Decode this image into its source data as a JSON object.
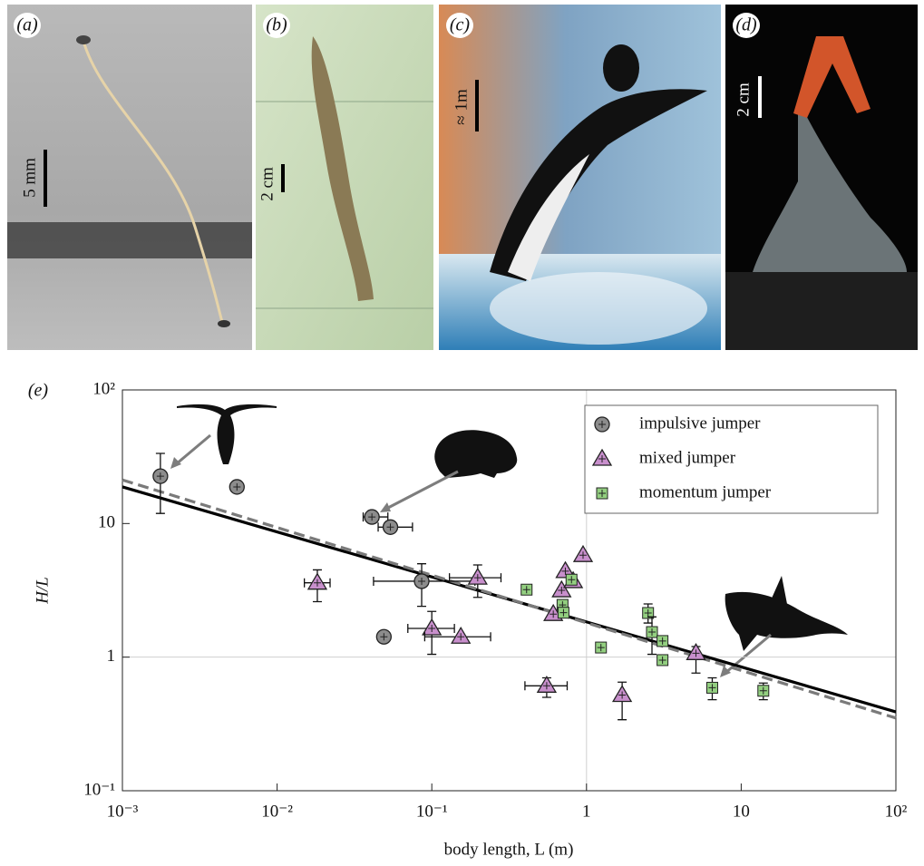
{
  "panels": [
    {
      "label": "(a)",
      "scale": "5 mm"
    },
    {
      "label": "(b)",
      "scale": "2 cm"
    },
    {
      "label": "(c)",
      "scale": "≈ 1m"
    },
    {
      "label": "(d)",
      "scale": "2 cm"
    }
  ],
  "chart_data": {
    "type": "scatter",
    "panel_label": "(e)",
    "xlabel": "body length, L (m)",
    "ylabel": "H/L",
    "xscale": "log",
    "yscale": "log",
    "xlim": [
      0.001,
      100
    ],
    "ylim": [
      0.1,
      100
    ],
    "xticks": [
      {
        "value": 0.001,
        "label": "10⁻³"
      },
      {
        "value": 0.01,
        "label": "10⁻²"
      },
      {
        "value": 0.1,
        "label": "10⁻¹"
      },
      1,
      10,
      {
        "value": 100,
        "label": "10²"
      }
    ],
    "yticks": [
      {
        "value": 0.1,
        "label": "10⁻¹"
      },
      1,
      10,
      {
        "value": 100,
        "label": "10²"
      }
    ],
    "x_reflines": [
      1
    ],
    "y_reflines": [
      1
    ],
    "legend": "upper right",
    "series": [
      {
        "name": "impulsive jumper",
        "color": "#8c8c8c",
        "marker": "circle",
        "x": [
          0.00176,
          0.0055,
          0.041,
          0.054,
          0.086,
          0.049
        ],
        "y": [
          22.6,
          18.8,
          11.2,
          9.4,
          3.7,
          1.42
        ],
        "x_err": [
          null,
          null,
          [
            0.036,
            0.052
          ],
          [
            0.045,
            0.075
          ],
          [
            0.042,
            0.19
          ],
          null
        ],
        "y_err": [
          [
            11.9,
            33.5
          ],
          null,
          null,
          null,
          [
            2.4,
            5.0
          ],
          null
        ]
      },
      {
        "name": "mixed jumper",
        "color": "#c88fcc",
        "marker": "triangle",
        "x": [
          0.0182,
          0.1,
          0.154,
          0.198,
          0.553,
          0.61,
          0.69,
          0.73,
          0.82,
          0.95,
          1.7,
          5.1
        ],
        "y": [
          3.6,
          1.64,
          1.42,
          3.93,
          0.61,
          2.1,
          3.16,
          4.4,
          3.7,
          5.8,
          0.52,
          1.07
        ],
        "x_err": [
          [
            0.015,
            0.022
          ],
          [
            0.07,
            0.14
          ],
          [
            0.09,
            0.24
          ],
          [
            0.13,
            0.28
          ],
          [
            0.4,
            0.75
          ],
          null,
          null,
          null,
          null,
          null,
          null,
          null
        ],
        "y_err": [
          [
            2.6,
            4.5
          ],
          [
            1.05,
            2.2
          ],
          null,
          [
            2.8,
            4.9
          ],
          [
            0.5,
            0.7
          ],
          null,
          null,
          null,
          null,
          null,
          [
            0.34,
            0.65
          ],
          [
            0.76,
            1.2
          ]
        ]
      },
      {
        "name": "momentum jumper",
        "color": "#93cf80",
        "marker": "square",
        "x": [
          0.41,
          0.7,
          0.71,
          0.8,
          1.24,
          2.5,
          2.65,
          3.1,
          3.1,
          6.5,
          13.9
        ],
        "y": [
          3.2,
          2.46,
          2.15,
          3.8,
          1.18,
          2.14,
          1.54,
          1.32,
          0.95,
          0.59,
          0.56
        ],
        "x_err": [
          null,
          null,
          null,
          null,
          null,
          null,
          null,
          null,
          null,
          null,
          null
        ],
        "y_err": [
          null,
          null,
          null,
          null,
          null,
          [
            1.8,
            2.5
          ],
          [
            1.05,
            2.0
          ],
          null,
          null,
          [
            0.48,
            0.7
          ],
          [
            0.48,
            0.64
          ]
        ]
      }
    ],
    "fits": [
      {
        "x": [
          0.001,
          100
        ],
        "y": [
          18.8,
          0.389
        ],
        "color": "#000000",
        "style": "solid"
      },
      {
        "x": [
          0.001,
          100
        ],
        "y": [
          21.2,
          0.35
        ],
        "color": "#7a7a7a",
        "style": "dashed"
      }
    ]
  }
}
